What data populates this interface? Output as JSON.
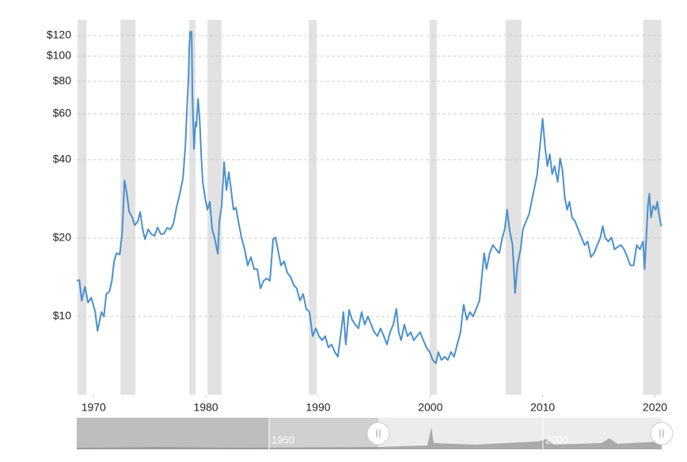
{
  "chart_data": {
    "type": "line",
    "log_scale": true,
    "grid": true,
    "color": "#4a90cc",
    "recession_color": "#e2e2e2",
    "xlim": [
      1968.5,
      2020.6
    ],
    "ylim": [
      5,
      138
    ],
    "xticks": [
      1970,
      1980,
      1990,
      2000,
      2010,
      2020
    ],
    "yticks": [
      {
        "value": 10,
        "label": "$10"
      },
      {
        "value": 20,
        "label": "$20"
      },
      {
        "value": 40,
        "label": "$40"
      },
      {
        "value": 60,
        "label": "$60"
      },
      {
        "value": 80,
        "label": "$80"
      },
      {
        "value": 100,
        "label": "$100"
      },
      {
        "value": 120,
        "label": "$120"
      }
    ],
    "recessions": [
      [
        1968.59,
        1969.37
      ],
      [
        1972.39,
        1973.73
      ],
      [
        1978.52,
        1979.08
      ],
      [
        1980.14,
        1981.41
      ],
      [
        1989.15,
        1989.86
      ],
      [
        1999.93,
        2000.56
      ],
      [
        2006.69,
        2008.1
      ],
      [
        2018.94,
        2020.56
      ]
    ],
    "x": [
      1968.52,
      1968.73,
      1968.94,
      1969.23,
      1969.51,
      1969.79,
      1970.14,
      1970.35,
      1970.7,
      1970.92,
      1971.13,
      1971.41,
      1971.62,
      1971.83,
      1972.04,
      1972.32,
      1972.54,
      1972.75,
      1972.96,
      1973.17,
      1973.45,
      1973.66,
      1973.94,
      1974.15,
      1974.37,
      1974.58,
      1974.86,
      1975.14,
      1975.42,
      1975.7,
      1975.99,
      1976.27,
      1976.55,
      1976.83,
      1977.11,
      1977.39,
      1977.68,
      1977.96,
      1978.17,
      1978.31,
      1978.45,
      1978.52,
      1978.59,
      1978.73,
      1978.8,
      1978.94,
      1979.08,
      1979.15,
      1979.3,
      1979.44,
      1979.58,
      1979.72,
      1979.93,
      1980.14,
      1980.35,
      1980.56,
      1980.77,
      1981.06,
      1981.2,
      1981.41,
      1981.62,
      1981.83,
      1982.04,
      1982.25,
      1982.46,
      1982.68,
      1982.89,
      1983.17,
      1983.45,
      1983.73,
      1984.01,
      1984.3,
      1984.58,
      1984.86,
      1985.14,
      1985.42,
      1985.7,
      1985.99,
      1986.2,
      1986.41,
      1986.69,
      1986.97,
      1987.25,
      1987.54,
      1987.82,
      1988.1,
      1988.38,
      1988.66,
      1988.94,
      1989.23,
      1989.51,
      1989.79,
      1990.07,
      1990.35,
      1990.63,
      1990.92,
      1991.2,
      1991.48,
      1991.76,
      1992.04,
      1992.25,
      1992.46,
      1992.75,
      1993.03,
      1993.31,
      1993.59,
      1993.87,
      1994.15,
      1994.44,
      1994.72,
      1995.0,
      1995.28,
      1995.56,
      1995.85,
      1996.13,
      1996.41,
      1996.69,
      1996.97,
      1997.18,
      1997.39,
      1997.68,
      1997.96,
      1998.24,
      1998.52,
      1998.8,
      1999.08,
      1999.37,
      1999.65,
      1999.93,
      2000.21,
      2000.49,
      2000.7,
      2000.99,
      2001.27,
      2001.55,
      2001.83,
      2002.11,
      2002.39,
      2002.68,
      2002.96,
      2003.24,
      2003.52,
      2003.8,
      2004.08,
      2004.37,
      2004.58,
      2004.79,
      2005.0,
      2005.28,
      2005.56,
      2005.85,
      2006.13,
      2006.41,
      2006.62,
      2006.83,
      2007.04,
      2007.32,
      2007.54,
      2007.75,
      2008.03,
      2008.24,
      2008.52,
      2008.8,
      2009.01,
      2009.23,
      2009.51,
      2009.79,
      2010.0,
      2010.21,
      2010.42,
      2010.63,
      2010.85,
      2011.06,
      2011.34,
      2011.55,
      2011.76,
      2011.97,
      2012.18,
      2012.39,
      2012.61,
      2012.89,
      2013.17,
      2013.45,
      2013.73,
      2014.01,
      2014.3,
      2014.58,
      2014.86,
      2015.14,
      2015.35,
      2015.56,
      2015.85,
      2016.13,
      2016.41,
      2016.69,
      2016.97,
      2017.25,
      2017.54,
      2017.82,
      2018.1,
      2018.38,
      2018.66,
      2018.94,
      2019.08,
      2019.23,
      2019.37,
      2019.51,
      2019.65,
      2019.86,
      2020.07,
      2020.21,
      2020.35,
      2020.56
    ],
    "values": [
      13.7,
      13.8,
      11.5,
      13.0,
      11.3,
      11.8,
      10.4,
      8.8,
      10.4,
      10.0,
      12.2,
      12.5,
      13.7,
      16.3,
      17.5,
      17.3,
      20.8,
      33.3,
      29.6,
      25.2,
      24.0,
      22.4,
      23.2,
      25.2,
      21.6,
      19.8,
      21.6,
      20.7,
      20.4,
      22.0,
      20.7,
      20.8,
      21.9,
      21.6,
      22.7,
      26.3,
      29.6,
      34.0,
      45.0,
      61.7,
      81.6,
      107.8,
      124,
      124,
      71,
      44,
      55.6,
      53.7,
      68.6,
      57.5,
      42,
      32.9,
      28.6,
      25.7,
      27.6,
      21.6,
      20.1,
      17.4,
      23.2,
      26.6,
      39.2,
      30.6,
      35.8,
      30.6,
      25.7,
      26.2,
      23.2,
      20.1,
      18.1,
      15.7,
      16.9,
      15.2,
      15.2,
      12.8,
      13.7,
      14.0,
      13.7,
      19.8,
      20.1,
      18.1,
      15.7,
      16.3,
      14.7,
      14.2,
      13.2,
      12.8,
      11.5,
      12.2,
      10.7,
      10.4,
      8.4,
      9.0,
      8.4,
      8.1,
      8.4,
      7.6,
      7.8,
      7.3,
      7.0,
      8.7,
      10.4,
      7.8,
      10.6,
      9.7,
      9.3,
      9.0,
      10.4,
      9.3,
      10.0,
      9.3,
      8.7,
      8.4,
      9.0,
      8.4,
      7.8,
      8.7,
      9.3,
      10.7,
      8.7,
      8.1,
      9.3,
      8.4,
      8.7,
      8.1,
      8.4,
      8.7,
      8.1,
      7.6,
      7.3,
      6.8,
      6.6,
      7.3,
      6.8,
      7.0,
      6.8,
      7.3,
      7.0,
      7.8,
      8.7,
      11.1,
      9.7,
      10.4,
      10.0,
      10.7,
      11.5,
      14.2,
      17.5,
      15.2,
      17.5,
      18.8,
      18.1,
      17.5,
      20.1,
      21.6,
      25.7,
      21.6,
      18.8,
      12.3,
      15.7,
      18.1,
      21.6,
      23.2,
      24.8,
      27.6,
      30.6,
      35.2,
      46.6,
      57.5,
      45.0,
      37.8,
      42.0,
      35.2,
      37.8,
      32.9,
      40.5,
      36.5,
      28.6,
      25.7,
      27.6,
      24.0,
      23.2,
      21.6,
      20.1,
      18.8,
      19.4,
      16.9,
      17.5,
      18.8,
      20.1,
      22.2,
      20.1,
      19.4,
      20.1,
      18.1,
      18.5,
      18.8,
      18.1,
      16.9,
      15.7,
      15.7,
      18.8,
      18.1,
      19.4,
      15.2,
      20.1,
      26.6,
      29.6,
      24.0,
      26.6,
      25.7,
      27.6,
      24.8,
      22.2
    ],
    "navigator": {
      "labels": [
        "1950",
        "2000"
      ]
    }
  }
}
